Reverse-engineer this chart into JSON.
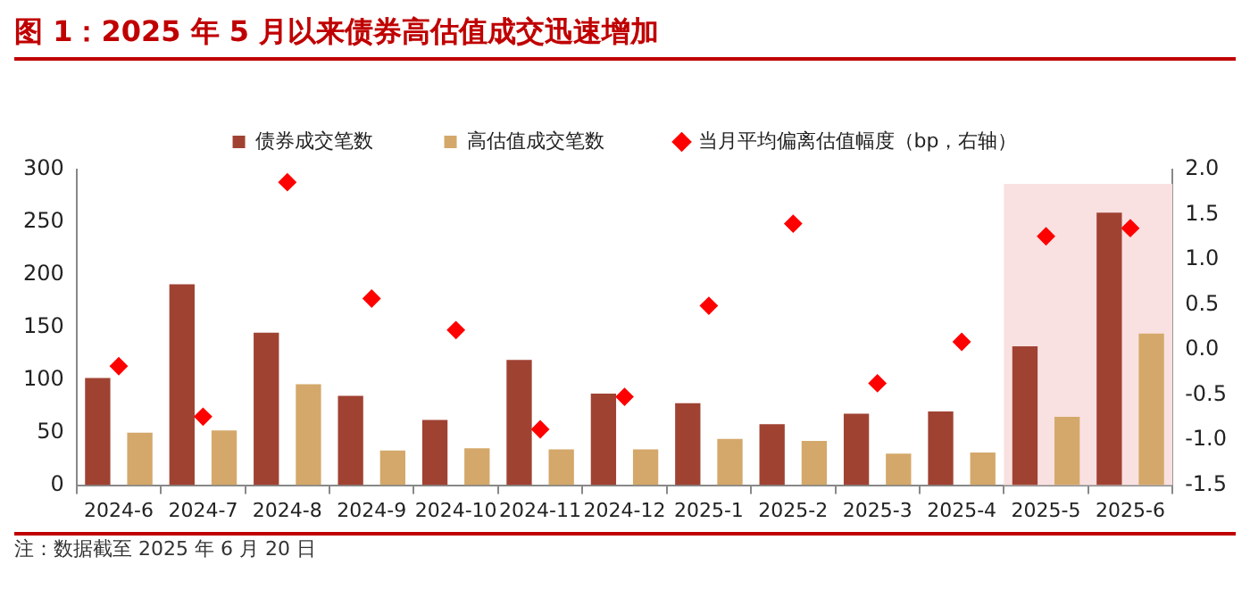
{
  "chart_data": {
    "type": "bar",
    "title": "图 1：2025 年 5 月以来债券高估值成交迅速增加",
    "categories": [
      "2024-6",
      "2024-7",
      "2024-8",
      "2024-9",
      "2024-10",
      "2024-11",
      "2024-12",
      "2025-1",
      "2025-2",
      "2025-3",
      "2025-4",
      "2025-5",
      "2025-6"
    ],
    "series": [
      {
        "name": "债券成交笔数",
        "color": "#a04232",
        "values": [
          102,
          191,
          145,
          85,
          62,
          119,
          87,
          78,
          58,
          68,
          70,
          132,
          259
        ]
      },
      {
        "name": "高估值成交笔数",
        "color": "#d4a86a",
        "values": [
          50,
          52,
          96,
          33,
          35,
          34,
          34,
          44,
          42,
          30,
          31,
          65,
          144
        ]
      },
      {
        "name": "当月平均偏离估值幅度（bp，右轴）",
        "type": "scatter",
        "axis": "y2",
        "color": "#ff0000",
        "marker": "diamond",
        "values": [
          -0.18,
          -0.74,
          1.86,
          0.57,
          0.22,
          -0.88,
          -0.52,
          0.49,
          1.4,
          -0.37,
          0.09,
          1.26,
          1.35
        ]
      }
    ],
    "ylim": [
      0,
      300
    ],
    "yticks": [
      0,
      50,
      100,
      150,
      200,
      250,
      300
    ],
    "y2lim": [
      -1.5,
      2.0
    ],
    "y2ticks": [
      {
        "value": 2.0,
        "label": "2.0"
      },
      1.5,
      {
        "value": 1.0,
        "label": "1.0"
      },
      0.5,
      {
        "value": 0.0,
        "label": "0.0"
      },
      -0.5,
      {
        "value": -1.0,
        "label": "-1.0"
      },
      -1.5
    ],
    "bands": [
      {
        "axis": "x",
        "from": "2025-5",
        "to": "2025-6",
        "color": "#f9e1e1"
      }
    ],
    "legend": "top",
    "annotations": [
      "注：数据截至 2025 年 6 月 20 日"
    ]
  }
}
